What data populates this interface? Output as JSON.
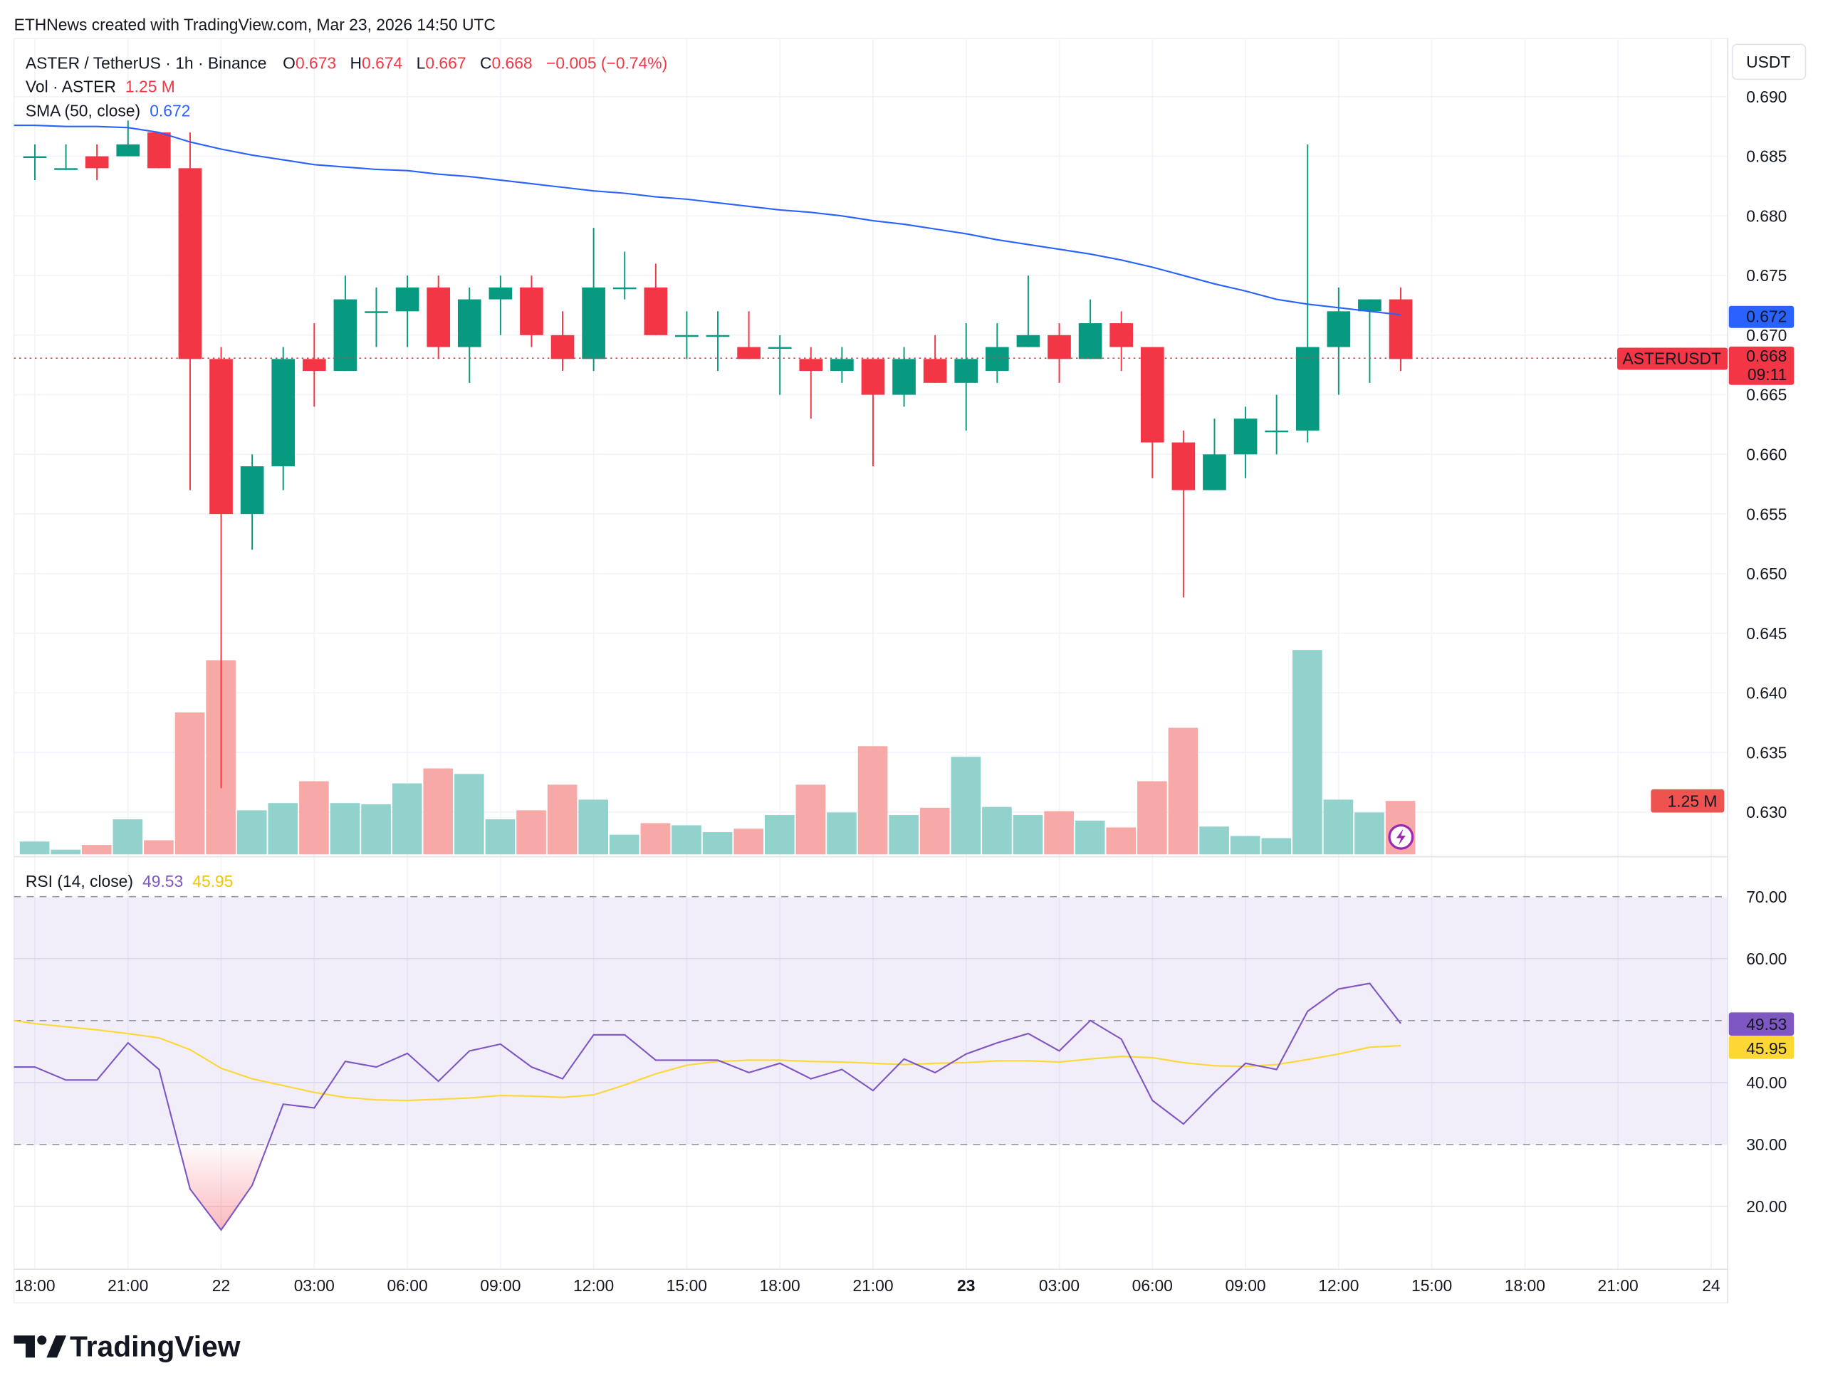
{
  "header": {
    "credit": "ETHNews created with TradingView.com, Mar 23, 2026 14:50 UTC"
  },
  "legend": {
    "symbol": "ASTER / TetherUS · 1h · Binance",
    "o_label": "O",
    "o": "0.673",
    "h_label": "H",
    "h": "0.674",
    "l_label": "L",
    "l": "0.667",
    "c_label": "C",
    "c": "0.668",
    "change": "−0.005 (−0.74%)",
    "vol_label": "Vol · ASTER",
    "vol": "1.25 M",
    "sma_label": "SMA (50, close)",
    "sma": "0.672",
    "rsi_label": "RSI (14, close)",
    "rsi": "49.53",
    "rsi_ma": "45.95"
  },
  "axis": {
    "currency": "USDT",
    "price_ticks": [
      "0.690",
      "0.685",
      "0.680",
      "0.675",
      "0.670",
      "0.665",
      "0.660",
      "0.655",
      "0.650",
      "0.645",
      "0.640",
      "0.635",
      "0.630"
    ],
    "rsi_ticks": [
      "70.00",
      "60.00",
      "50.00",
      "40.00",
      "30.00",
      "20.00"
    ],
    "time_ticks": [
      {
        "label": "18:00",
        "bold": false
      },
      {
        "label": "21:00",
        "bold": false
      },
      {
        "label": "22",
        "bold": false
      },
      {
        "label": "03:00",
        "bold": false
      },
      {
        "label": "06:00",
        "bold": false
      },
      {
        "label": "09:00",
        "bold": false
      },
      {
        "label": "12:00",
        "bold": false
      },
      {
        "label": "15:00",
        "bold": false
      },
      {
        "label": "18:00",
        "bold": false
      },
      {
        "label": "21:00",
        "bold": false
      },
      {
        "label": "23",
        "bold": true
      },
      {
        "label": "03:00",
        "bold": false
      },
      {
        "label": "06:00",
        "bold": false
      },
      {
        "label": "09:00",
        "bold": false
      },
      {
        "label": "12:00",
        "bold": false
      },
      {
        "label": "15:00",
        "bold": false
      },
      {
        "label": "18:00",
        "bold": false
      },
      {
        "label": "21:00",
        "bold": false
      },
      {
        "label": "24",
        "bold": false
      }
    ]
  },
  "tags": {
    "sma": "0.672",
    "symbol": "ASTERUSDT",
    "price": "0.668",
    "countdown": "09:11",
    "volume": "1.25 M",
    "rsi": "49.53",
    "rsi_ma": "45.95"
  },
  "logo": {
    "text": "TradingView"
  },
  "colors": {
    "up": "#089981",
    "down": "#f23645",
    "up_vol": "#92d2cc",
    "down_vol": "#f7a9a7",
    "sma": "#2962ff",
    "rsi": "#7e57c2",
    "rsi_ma": "#fdd835",
    "rsi_band": "#7e57c2"
  },
  "chart_data": {
    "type": "candlestick",
    "title": "ASTER / TetherUS · 1h · Binance",
    "x_start": "2026-03-21 18:00",
    "interval": "1h",
    "ylim": [
      0.6265,
      0.6915
    ],
    "candles": [
      [
        0.685,
        0.686,
        0.683,
        0.685
      ],
      [
        0.684,
        0.686,
        0.684,
        0.684
      ],
      [
        0.685,
        0.686,
        0.683,
        0.684
      ],
      [
        0.685,
        0.688,
        0.685,
        0.686
      ],
      [
        0.687,
        0.687,
        0.684,
        0.684
      ],
      [
        0.684,
        0.687,
        0.657,
        0.668
      ],
      [
        0.668,
        0.669,
        0.632,
        0.655
      ],
      [
        0.655,
        0.66,
        0.652,
        0.659
      ],
      [
        0.659,
        0.669,
        0.657,
        0.668
      ],
      [
        0.668,
        0.671,
        0.664,
        0.667
      ],
      [
        0.667,
        0.675,
        0.667,
        0.673
      ],
      [
        0.672,
        0.674,
        0.669,
        0.672
      ],
      [
        0.672,
        0.675,
        0.669,
        0.674
      ],
      [
        0.674,
        0.675,
        0.668,
        0.669
      ],
      [
        0.669,
        0.674,
        0.666,
        0.673
      ],
      [
        0.673,
        0.675,
        0.67,
        0.674
      ],
      [
        0.674,
        0.675,
        0.669,
        0.67
      ],
      [
        0.67,
        0.672,
        0.667,
        0.668
      ],
      [
        0.668,
        0.679,
        0.667,
        0.674
      ],
      [
        0.674,
        0.677,
        0.673,
        0.674
      ],
      [
        0.674,
        0.676,
        0.67,
        0.67
      ],
      [
        0.67,
        0.672,
        0.668,
        0.67
      ],
      [
        0.67,
        0.672,
        0.667,
        0.67
      ],
      [
        0.669,
        0.672,
        0.668,
        0.668
      ],
      [
        0.669,
        0.67,
        0.665,
        0.669
      ],
      [
        0.668,
        0.669,
        0.663,
        0.667
      ],
      [
        0.667,
        0.669,
        0.666,
        0.668
      ],
      [
        0.668,
        0.668,
        0.659,
        0.665
      ],
      [
        0.665,
        0.669,
        0.664,
        0.668
      ],
      [
        0.668,
        0.67,
        0.666,
        0.666
      ],
      [
        0.666,
        0.671,
        0.662,
        0.668
      ],
      [
        0.667,
        0.671,
        0.666,
        0.669
      ],
      [
        0.669,
        0.675,
        0.669,
        0.67
      ],
      [
        0.67,
        0.671,
        0.666,
        0.668
      ],
      [
        0.668,
        0.673,
        0.668,
        0.671
      ],
      [
        0.671,
        0.672,
        0.667,
        0.669
      ],
      [
        0.669,
        0.669,
        0.658,
        0.661
      ],
      [
        0.661,
        0.662,
        0.648,
        0.657
      ],
      [
        0.657,
        0.663,
        0.657,
        0.66
      ],
      [
        0.66,
        0.664,
        0.658,
        0.663
      ],
      [
        0.662,
        0.665,
        0.66,
        0.662
      ],
      [
        0.662,
        0.686,
        0.661,
        0.669
      ],
      [
        0.669,
        0.674,
        0.665,
        0.672
      ],
      [
        0.672,
        0.673,
        0.666,
        0.673
      ],
      [
        0.673,
        0.674,
        0.667,
        0.668
      ]
    ],
    "volume_millions": [
      0.3,
      0.11,
      0.22,
      0.82,
      0.33,
      3.32,
      4.54,
      1.03,
      1.2,
      1.71,
      1.2,
      1.17,
      1.66,
      2.01,
      1.88,
      0.82,
      1.03,
      1.63,
      1.28,
      0.46,
      0.73,
      0.68,
      0.52,
      0.6,
      0.92,
      1.63,
      0.98,
      2.53,
      0.92,
      1.09,
      2.28,
      1.11,
      0.92,
      1.01,
      0.79,
      0.63,
      1.71,
      2.96,
      0.65,
      0.43,
      0.38,
      4.78,
      1.28,
      0.98,
      1.25
    ],
    "sma50": [
      0.6876,
      0.6875,
      0.6875,
      0.6874,
      0.687,
      0.6862,
      0.6856,
      0.6851,
      0.6847,
      0.6843,
      0.6841,
      0.6839,
      0.6838,
      0.6835,
      0.6833,
      0.683,
      0.6827,
      0.6824,
      0.6821,
      0.6819,
      0.6816,
      0.6814,
      0.6811,
      0.6808,
      0.6805,
      0.6803,
      0.68,
      0.6796,
      0.6793,
      0.6789,
      0.6785,
      0.678,
      0.6776,
      0.6772,
      0.6768,
      0.6763,
      0.6757,
      0.675,
      0.6743,
      0.6737,
      0.673,
      0.6726,
      0.6723,
      0.672,
      0.6717
    ],
    "rsi": [
      42.5,
      40.4,
      40.4,
      46.4,
      42.1,
      22.8,
      16.2,
      23.4,
      36.5,
      35.9,
      43.4,
      42.5,
      44.7,
      40.2,
      45.1,
      46.2,
      42.5,
      40.6,
      47.7,
      47.7,
      43.6,
      43.6,
      43.6,
      41.6,
      43.1,
      40.6,
      42.1,
      38.7,
      43.8,
      41.6,
      44.6,
      46.4,
      47.9,
      45.1,
      50.0,
      47.0,
      37.1,
      33.3,
      38.4,
      43.1,
      42.1,
      51.5,
      55.1,
      56.0,
      49.53
    ],
    "rsi_ma": [
      49.5,
      49.0,
      48.5,
      47.9,
      47.2,
      45.3,
      42.3,
      40.6,
      39.5,
      38.4,
      37.6,
      37.2,
      37.1,
      37.3,
      37.5,
      37.9,
      37.8,
      37.6,
      38.0,
      39.6,
      41.4,
      42.8,
      43.4,
      43.6,
      43.6,
      43.4,
      43.3,
      43.1,
      42.9,
      43.1,
      43.2,
      43.5,
      43.5,
      43.3,
      43.8,
      44.2,
      44.0,
      43.2,
      42.7,
      42.6,
      42.9,
      43.7,
      44.6,
      45.7,
      45.95
    ],
    "rsi_levels": [
      70,
      50,
      30
    ],
    "rsi_ylim": [
      12,
      72
    ]
  }
}
